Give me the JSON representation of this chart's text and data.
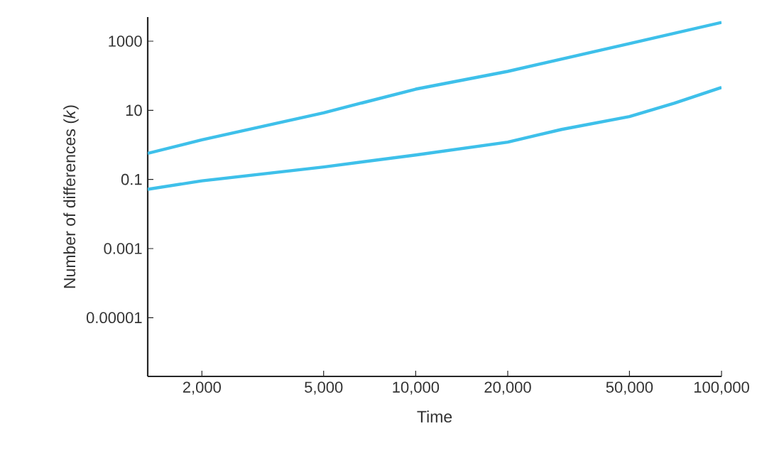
{
  "chart_data": {
    "type": "line",
    "xlabel": "Time",
    "ylabel": "Number of differences (*k*)",
    "log": "xy",
    "grid": false,
    "marker": "none",
    "line_style": "solid",
    "xlim": [
      1330,
      100000
    ],
    "ylim": [
      2e-07,
      5000
    ],
    "xticks": [
      {
        "value": 2000,
        "label": "2,000"
      },
      {
        "value": 5000,
        "label": "5,000"
      },
      {
        "value": 10000,
        "label": "10,000"
      },
      {
        "value": 20000,
        "label": "20,000"
      },
      {
        "value": 50000,
        "label": "50,000"
      },
      {
        "value": 100000,
        "label": "100,000"
      }
    ],
    "yticks": [
      {
        "value": 1e-05,
        "label": "0.00001"
      },
      {
        "value": 0.001,
        "label": "0.001"
      },
      {
        "value": 0.1,
        "label": "0.1"
      },
      {
        "value": 10,
        "label": "10"
      },
      {
        "value": 1000,
        "label": "1000"
      }
    ],
    "series": [
      {
        "color": "#3ec0ea",
        "x": [
          1330,
          2000,
          5000,
          10000,
          20000,
          50000,
          100000
        ],
        "values": [
          0.57,
          1.4,
          8.5,
          41,
          134,
          850,
          3500
        ]
      },
      {
        "color": "#3ec0ea",
        "x": [
          1330,
          2000,
          5000,
          10000,
          20000,
          30000,
          50000,
          70000,
          100000
        ],
        "values": [
          0.052,
          0.091,
          0.23,
          0.51,
          1.2,
          2.8,
          6.6,
          16,
          46
        ]
      }
    ]
  }
}
